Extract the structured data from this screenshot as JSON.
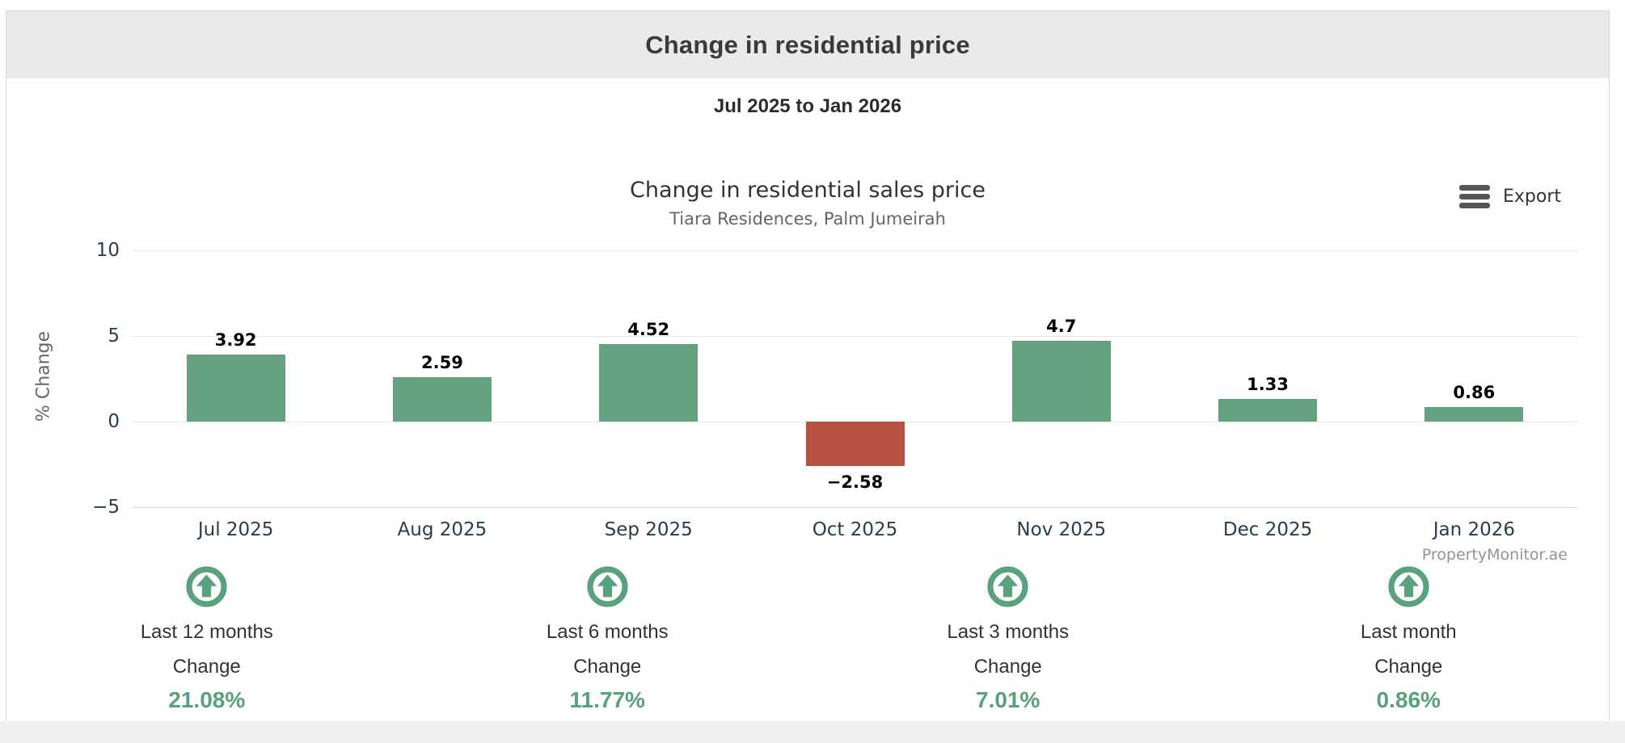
{
  "page": {
    "title": "Change in residential price",
    "range_subtitle": "Jul 2025 to Jan 2026"
  },
  "toolbar": {
    "export_label": "Export"
  },
  "chart_data": {
    "type": "bar",
    "title": "Change in residential sales price",
    "subtitle": "Tiara Residences, Palm Jumeirah",
    "ylabel": "% Change",
    "categories": [
      "Jul 2025",
      "Aug 2025",
      "Sep 2025",
      "Oct 2025",
      "Nov 2025",
      "Dec 2025",
      "Jan 2026"
    ],
    "values": [
      3.92,
      2.59,
      4.52,
      -2.58,
      4.7,
      1.33,
      0.86
    ],
    "value_labels": [
      "3.92",
      "2.59",
      "4.52",
      "−2.58",
      "4.7",
      "1.33",
      "0.86"
    ],
    "ylim": [
      -5,
      10
    ],
    "yticks": [
      10,
      5,
      0,
      -5
    ],
    "ytick_labels": [
      "10",
      "5",
      "0",
      "−5"
    ],
    "grid": true,
    "legend": "none",
    "credits": "PropertyMonitor.ae",
    "colors": {
      "positive": "#64a17e",
      "negative": "#b95142"
    }
  },
  "stats": [
    {
      "label": "Last 12 months",
      "change_label": "Change",
      "value": "21.08%"
    },
    {
      "label": "Last 6 months",
      "change_label": "Change",
      "value": "11.77%"
    },
    {
      "label": "Last 3 months",
      "change_label": "Change",
      "value": "7.01%"
    },
    {
      "label": "Last month",
      "change_label": "Change",
      "value": "0.86%"
    }
  ],
  "icons": {
    "arrow_up_circle_color": "#5aa27e"
  }
}
